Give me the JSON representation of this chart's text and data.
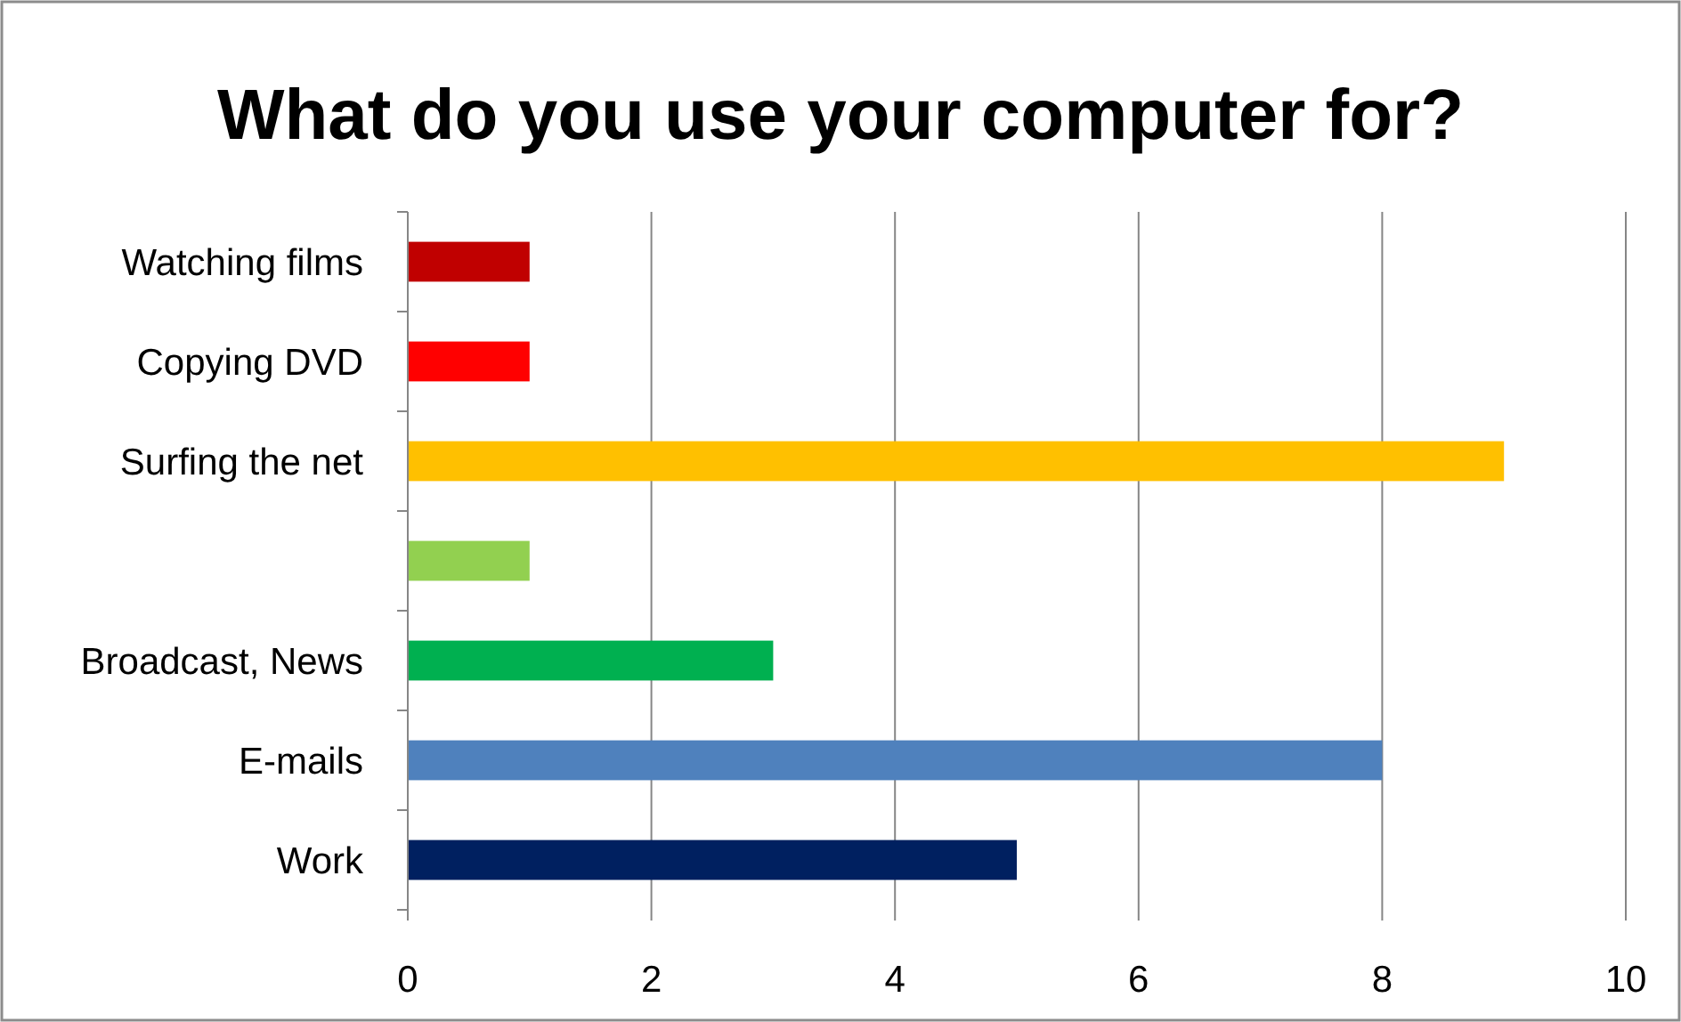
{
  "chart_data": {
    "type": "bar",
    "orientation": "horizontal",
    "title": "What do you use your computer for?",
    "categories": [
      "Watching films",
      "Copying DVD",
      "Surfing the net",
      null,
      "Broadcast, News",
      "E-mails",
      "Work"
    ],
    "values": [
      1,
      1,
      9,
      1,
      3,
      8,
      5
    ],
    "colors": [
      "#c00000",
      "#ff0000",
      "#ffc000",
      "#92d050",
      "#00b050",
      "#4f81bd",
      "#002060"
    ],
    "xlim": [
      0,
      10
    ],
    "xticks": [
      0,
      2,
      4,
      6,
      8,
      10
    ],
    "grid": "x"
  }
}
